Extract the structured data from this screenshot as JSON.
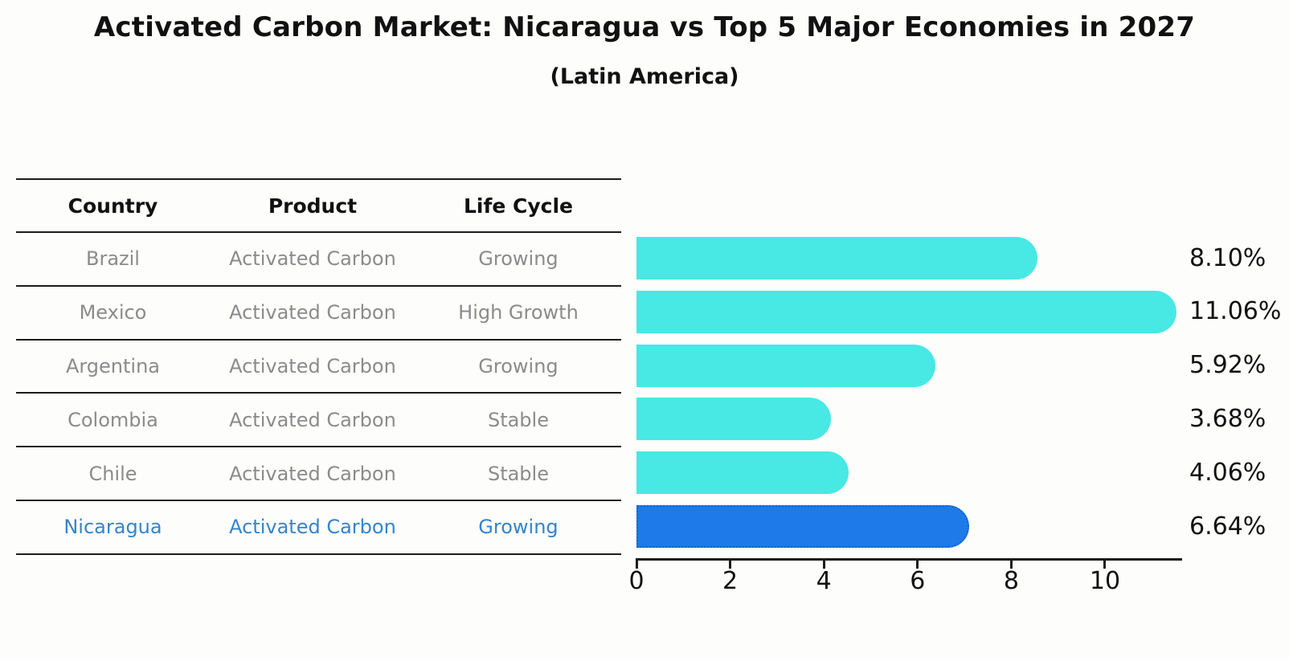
{
  "title": "Activated Carbon Market: Nicaragua vs Top 5 Major Economies in 2027",
  "subtitle": "(Latin America)",
  "table": {
    "headers": [
      "Country",
      "Product",
      "Life Cycle"
    ],
    "rows": [
      {
        "country": "Brazil",
        "product": "Activated Carbon",
        "life_cycle": "Growing",
        "highlight": false
      },
      {
        "country": "Mexico",
        "product": "Activated Carbon",
        "life_cycle": "High Growth",
        "highlight": false
      },
      {
        "country": "Argentina",
        "product": "Activated Carbon",
        "life_cycle": "Growing",
        "highlight": false
      },
      {
        "country": "Colombia",
        "product": "Activated Carbon",
        "life_cycle": "Stable",
        "highlight": false
      },
      {
        "country": "Chile",
        "product": "Activated Carbon",
        "life_cycle": "Stable",
        "highlight": false
      },
      {
        "country": "Nicaragua",
        "product": "Activated Carbon",
        "life_cycle": "Growing",
        "highlight": true
      }
    ]
  },
  "chart_data": {
    "type": "bar",
    "orientation": "horizontal",
    "title": "Activated Carbon Market: Nicaragua vs Top 5 Major Economies in 2027 (Latin America)",
    "categories": [
      "Brazil",
      "Mexico",
      "Argentina",
      "Colombia",
      "Chile",
      "Nicaragua"
    ],
    "values": [
      8.1,
      11.06,
      5.92,
      3.68,
      4.06,
      6.64
    ],
    "value_labels": [
      "8.10%",
      "11.06%",
      "5.92%",
      "3.68%",
      "4.06%",
      "6.64%"
    ],
    "x_ticks": [
      "0",
      "2",
      "4",
      "6",
      "8",
      "10"
    ],
    "x_tick_values": [
      0,
      2,
      4,
      6,
      8,
      10
    ],
    "xlim": [
      0,
      11.63
    ],
    "grid": false,
    "legend": "none",
    "highlight_index": 5,
    "bar_color": "#48e8e4",
    "highlight_color": "#1e7ae8",
    "highlight_border_color": "#1263cf",
    "text_gray": "#8b8b8b",
    "highlight_text_color": "#3484cc"
  }
}
